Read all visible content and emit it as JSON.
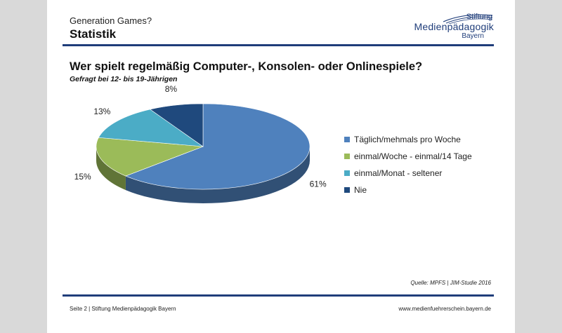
{
  "header": {
    "subtitle": "Generation Games?",
    "title": "Statistik",
    "logo": {
      "top": "Stiftung",
      "main": "Medienpädagogik",
      "bottom": "Bayern"
    }
  },
  "chart_data": {
    "type": "pie",
    "title": "Wer spielt regelmäßig Computer-, Konsolen- oder Onlinespiele?",
    "subtitle": "Gefragt bei 12- bis 19-Jährigen",
    "slices": [
      {
        "label": "Täglich/mehmals pro Woche",
        "value": 61,
        "display": "61%",
        "color": "#4f81bd"
      },
      {
        "label": "einmal/Woche - einmal/14 Tage",
        "value": 15,
        "display": "15%",
        "color": "#9bbb59"
      },
      {
        "label": "einmal/Monat - seltener",
        "value": 13,
        "display": "13%",
        "color": "#4bacc6"
      },
      {
        "label": "Nie",
        "value": 8,
        "display": "8%",
        "color": "#1f497d"
      }
    ],
    "legend_position": "right",
    "style": "3d"
  },
  "source": "Quelle: MPFS | JIM-Studie 2016",
  "footer": {
    "left": "Seite 2 | Stiftung Medienpädagogik Bayern",
    "right": "www.medienfuehrerschein.bayern.de"
  }
}
